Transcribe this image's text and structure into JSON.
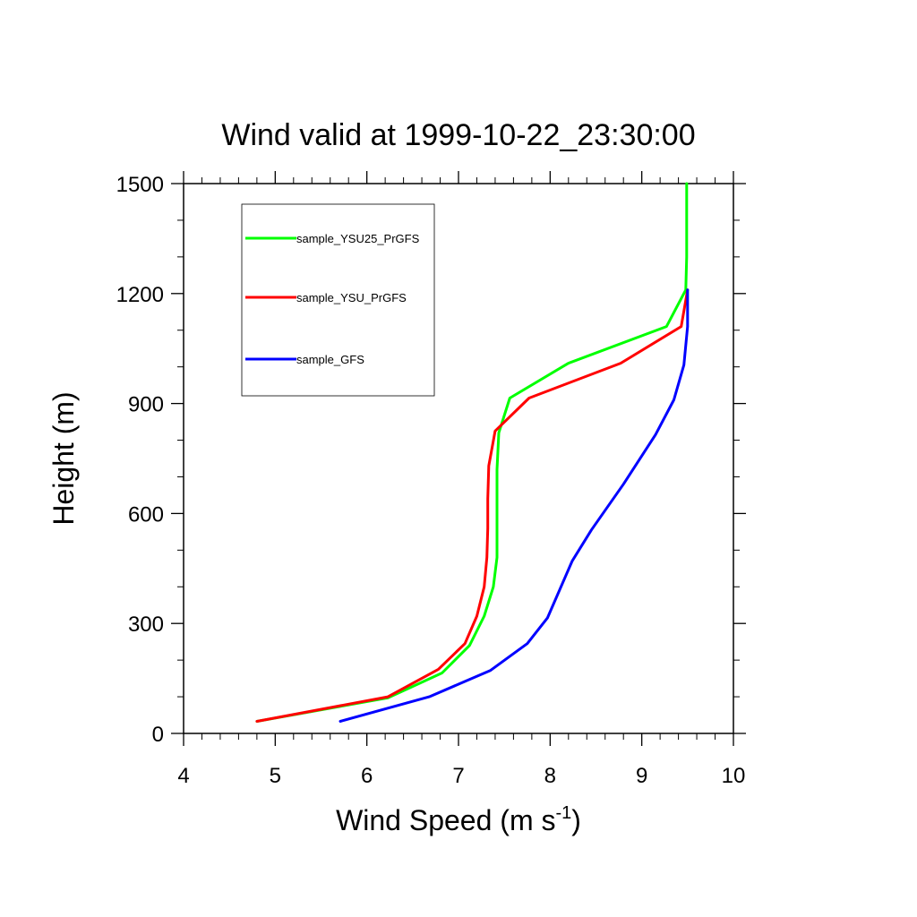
{
  "chart_data": {
    "type": "line",
    "title": "Wind valid at 1999-10-22_23:30:00",
    "xlabel": "Wind Speed (m s",
    "xlabel_sup": "-1",
    "xlabel_close": ")",
    "ylabel": "Height (m)",
    "xlim": [
      4,
      10
    ],
    "ylim": [
      0,
      1500
    ],
    "x_ticks": [
      4,
      5,
      6,
      7,
      8,
      9,
      10
    ],
    "y_ticks": [
      0,
      300,
      600,
      900,
      1200,
      1500
    ],
    "grid": false,
    "legend_position": "top-left",
    "series": [
      {
        "name": "sample_YSU25_PrGFS",
        "color": "#00ff00",
        "x": [
          4.8,
          6.23,
          6.82,
          7.12,
          7.28,
          7.38,
          7.42,
          7.42,
          7.42,
          7.44,
          7.56,
          8.2,
          9.27,
          9.48,
          9.49,
          9.49
        ],
        "y": [
          33,
          97,
          165,
          240,
          320,
          400,
          480,
          560,
          720,
          820,
          915,
          1010,
          1110,
          1210,
          1300,
          1500
        ]
      },
      {
        "name": "sample_YSU_PrGFS",
        "color": "#ff0000",
        "x": [
          4.8,
          6.23,
          6.78,
          7.07,
          7.2,
          7.28,
          7.31,
          7.32,
          7.32,
          7.33,
          7.4,
          7.77,
          8.77,
          9.43,
          9.5
        ],
        "y": [
          33,
          100,
          175,
          245,
          320,
          400,
          480,
          560,
          640,
          730,
          825,
          915,
          1010,
          1110,
          1210
        ]
      },
      {
        "name": "sample_GFS",
        "color": "#0000ff",
        "x": [
          5.71,
          6.68,
          7.35,
          7.75,
          7.97,
          8.24,
          8.45,
          8.8,
          9.15,
          9.35,
          9.46,
          9.5,
          9.5
        ],
        "y": [
          33,
          100,
          172,
          245,
          315,
          470,
          555,
          680,
          815,
          910,
          1005,
          1110,
          1210
        ]
      }
    ]
  }
}
